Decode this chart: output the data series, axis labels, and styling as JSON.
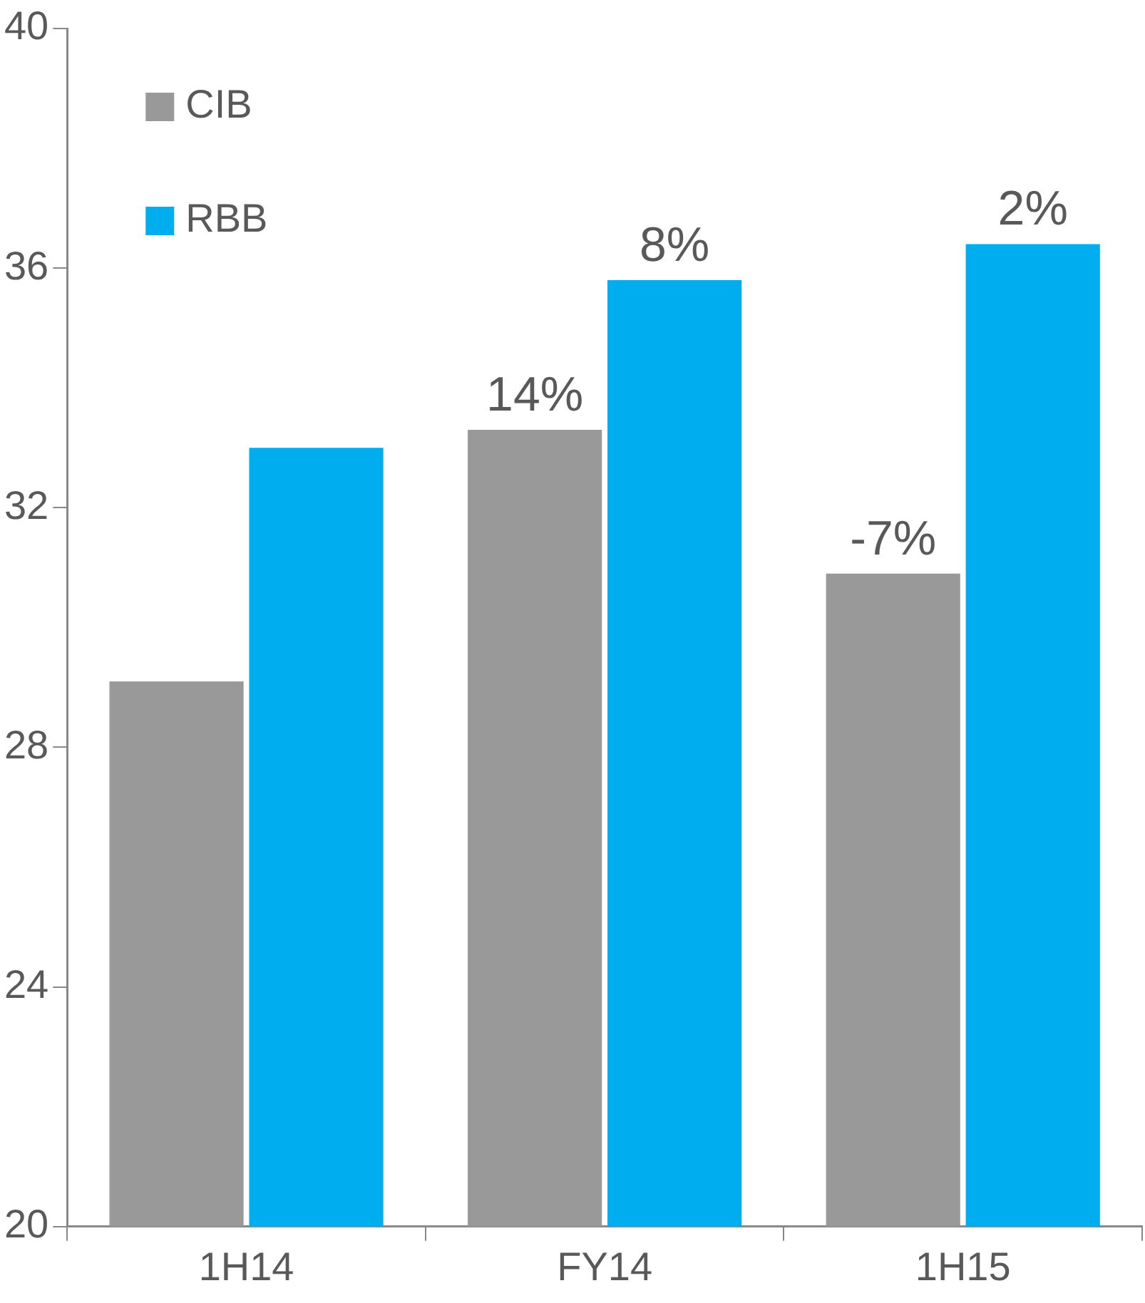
{
  "chart_data": {
    "type": "bar",
    "categories": [
      "1H14",
      "FY14",
      "1H15"
    ],
    "series": [
      {
        "name": "CIB",
        "color": "#999999",
        "values": [
          29.1,
          33.3,
          30.9
        ]
      },
      {
        "name": "RBB",
        "color": "#00aeef",
        "values": [
          33.0,
          35.8,
          36.4
        ]
      }
    ],
    "annotations": [
      {
        "text": "14%",
        "x": "FY14",
        "y": 33.3
      },
      {
        "text": "8%",
        "x": "FY14",
        "y": 35.8
      },
      {
        "text": "-7%",
        "x": "1H15",
        "y": 30.9
      },
      {
        "text": "2%",
        "x": "1H15",
        "y": 36.4
      }
    ],
    "ylim": [
      20,
      40
    ],
    "yticks": [
      20,
      24,
      28,
      32,
      36,
      40
    ],
    "grid": false,
    "legend": "top left"
  }
}
